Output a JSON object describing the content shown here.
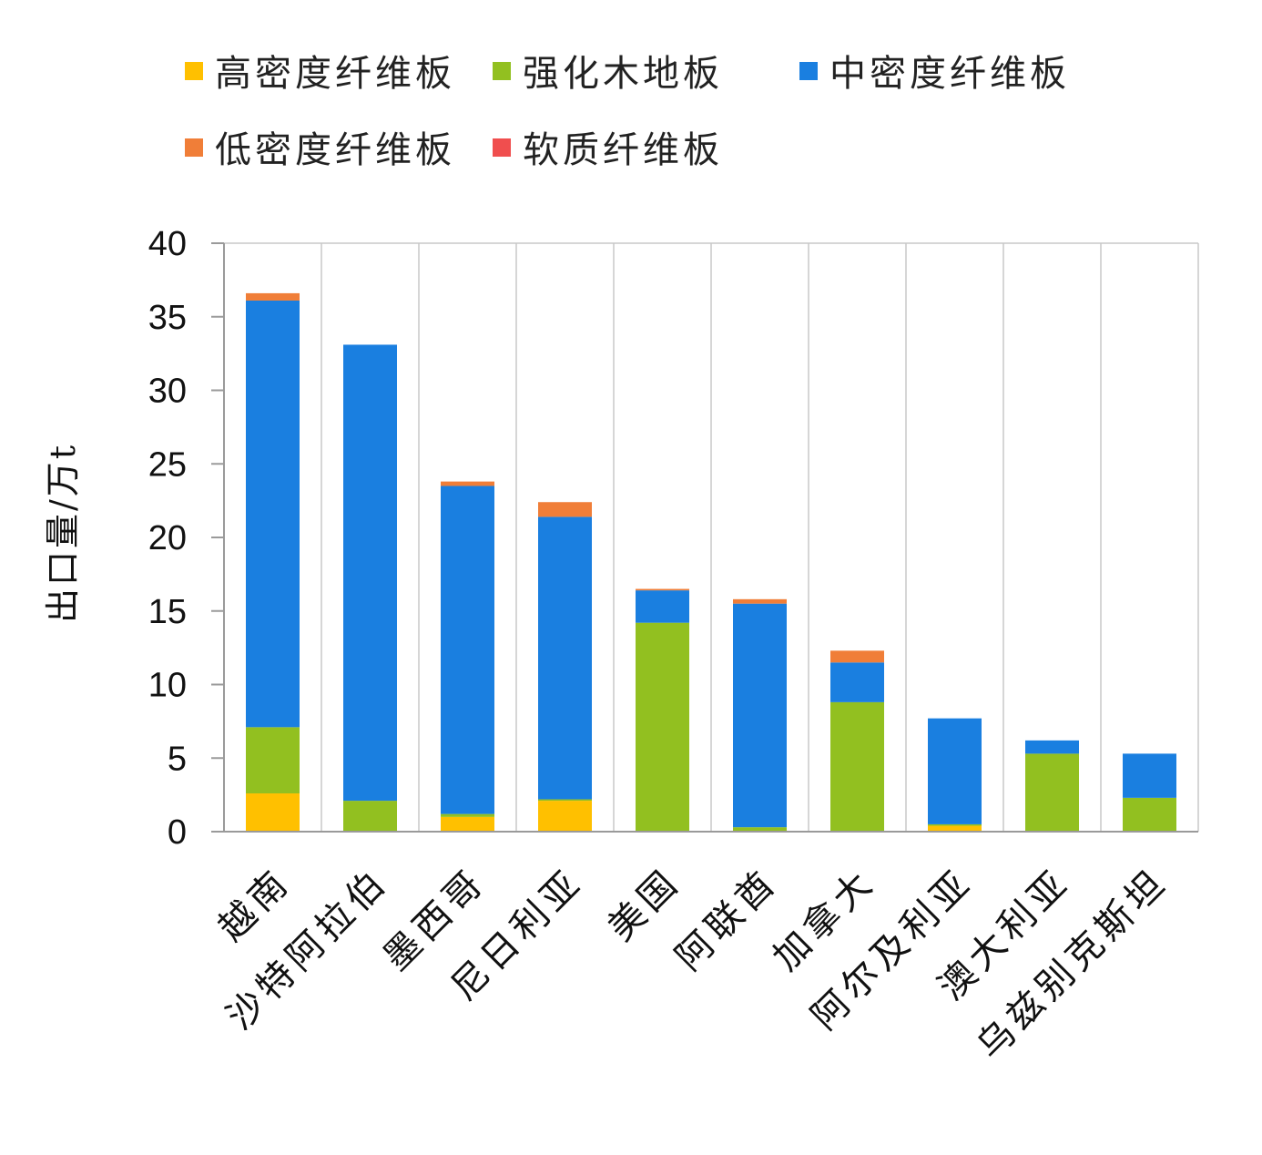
{
  "chart_data": {
    "type": "bar",
    "stacked": true,
    "ylabel": "出口量/万t",
    "ylim": [
      0,
      40
    ],
    "yticks": [
      0,
      5,
      10,
      15,
      20,
      25,
      30,
      35,
      40
    ],
    "grid": "vertical",
    "legend_position": "top",
    "categories": [
      "越南",
      "沙特阿拉伯",
      "墨西哥",
      "尼日利亚",
      "美国",
      "阿联酋",
      "加拿大",
      "阿尔及利亚",
      "澳大利亚",
      "乌兹别克斯坦"
    ],
    "series": [
      {
        "name": "高密度纤维板",
        "color": "#FFC000",
        "values": [
          2.6,
          0.0,
          1.0,
          2.1,
          0.0,
          0.0,
          0.0,
          0.4,
          0.0,
          0.0
        ]
      },
      {
        "name": "强化木地板",
        "color": "#92C020",
        "values": [
          4.5,
          2.1,
          0.2,
          0.1,
          14.2,
          0.3,
          8.8,
          0.1,
          5.3,
          2.3
        ]
      },
      {
        "name": "中密度纤维板",
        "color": "#1A7FE0",
        "values": [
          29.0,
          31.0,
          22.3,
          19.2,
          2.2,
          15.2,
          2.7,
          7.2,
          0.9,
          3.0
        ]
      },
      {
        "name": "低密度纤维板",
        "color": "#F07E38",
        "values": [
          0.5,
          0.0,
          0.3,
          1.0,
          0.1,
          0.3,
          0.8,
          0.0,
          0.0,
          0.0
        ]
      },
      {
        "name": "软质纤维板",
        "color": "#F04E4E",
        "values": [
          0.0,
          0.0,
          0.0,
          0.0,
          0.0,
          0.0,
          0.0,
          0.0,
          0.0,
          0.0
        ]
      }
    ]
  }
}
